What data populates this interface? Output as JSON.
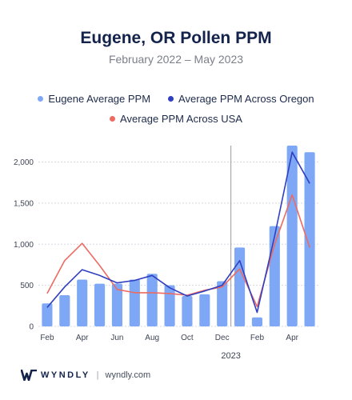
{
  "header": {
    "title": "Eugene, OR Pollen PPM",
    "subtitle": "February 2022 – May 2023"
  },
  "footer": {
    "brand": "WYNDLY",
    "url": "wyndly.com",
    "separator": "|"
  },
  "colors": {
    "bars": "#7ea8f6",
    "oregon": "#2f3fc0",
    "usa": "#ec6b63",
    "grid": "#d6d9df",
    "divider_line": "#9b9b9b",
    "tick_text": "#3d4454"
  },
  "chart_data": {
    "type": "bar",
    "title": "Eugene, OR Pollen PPM",
    "subtitle": "February 2022 – May 2023",
    "x": [
      "Feb 2022",
      "Mar 2022",
      "Apr 2022",
      "May 2022",
      "Jun 2022",
      "Jul 2022",
      "Aug 2022",
      "Sep 2022",
      "Oct 2022",
      "Nov 2022",
      "Dec 2022",
      "Jan 2023",
      "Feb 2023",
      "Mar 2023",
      "Apr 2023",
      "May 2023"
    ],
    "x_tick_labels": [
      "Feb",
      "",
      "Apr",
      "",
      "Jun",
      "",
      "Aug",
      "",
      "Oct",
      "",
      "Dec",
      "",
      "Feb",
      "",
      "Apr",
      ""
    ],
    "year_label": "2023",
    "year_boundary_after_index": 10,
    "series": [
      {
        "name": "Eugene Average PPM",
        "kind": "bar",
        "color": "#7ea8f6",
        "values": [
          280,
          380,
          570,
          520,
          520,
          570,
          640,
          500,
          370,
          390,
          550,
          960,
          110,
          1220,
          2200,
          2120
        ]
      },
      {
        "name": "Average PPM Across Oregon",
        "kind": "line",
        "color": "#2f3fc0",
        "values": [
          230,
          480,
          690,
          620,
          530,
          560,
          620,
          470,
          370,
          430,
          500,
          800,
          170,
          1100,
          2120,
          1740
        ]
      },
      {
        "name": "Average PPM Across USA",
        "kind": "line",
        "color": "#ec6b63",
        "values": [
          400,
          800,
          1010,
          740,
          450,
          410,
          410,
          400,
          380,
          440,
          480,
          700,
          240,
          1000,
          1600,
          960
        ]
      }
    ],
    "y_ticks": [
      0,
      500,
      1000,
      1500,
      2000
    ],
    "y_tick_labels": [
      "0",
      "500",
      "1,000",
      "1,500",
      "2,000"
    ],
    "ylim": [
      0,
      2200
    ],
    "grid": true,
    "legend_position": "top"
  }
}
